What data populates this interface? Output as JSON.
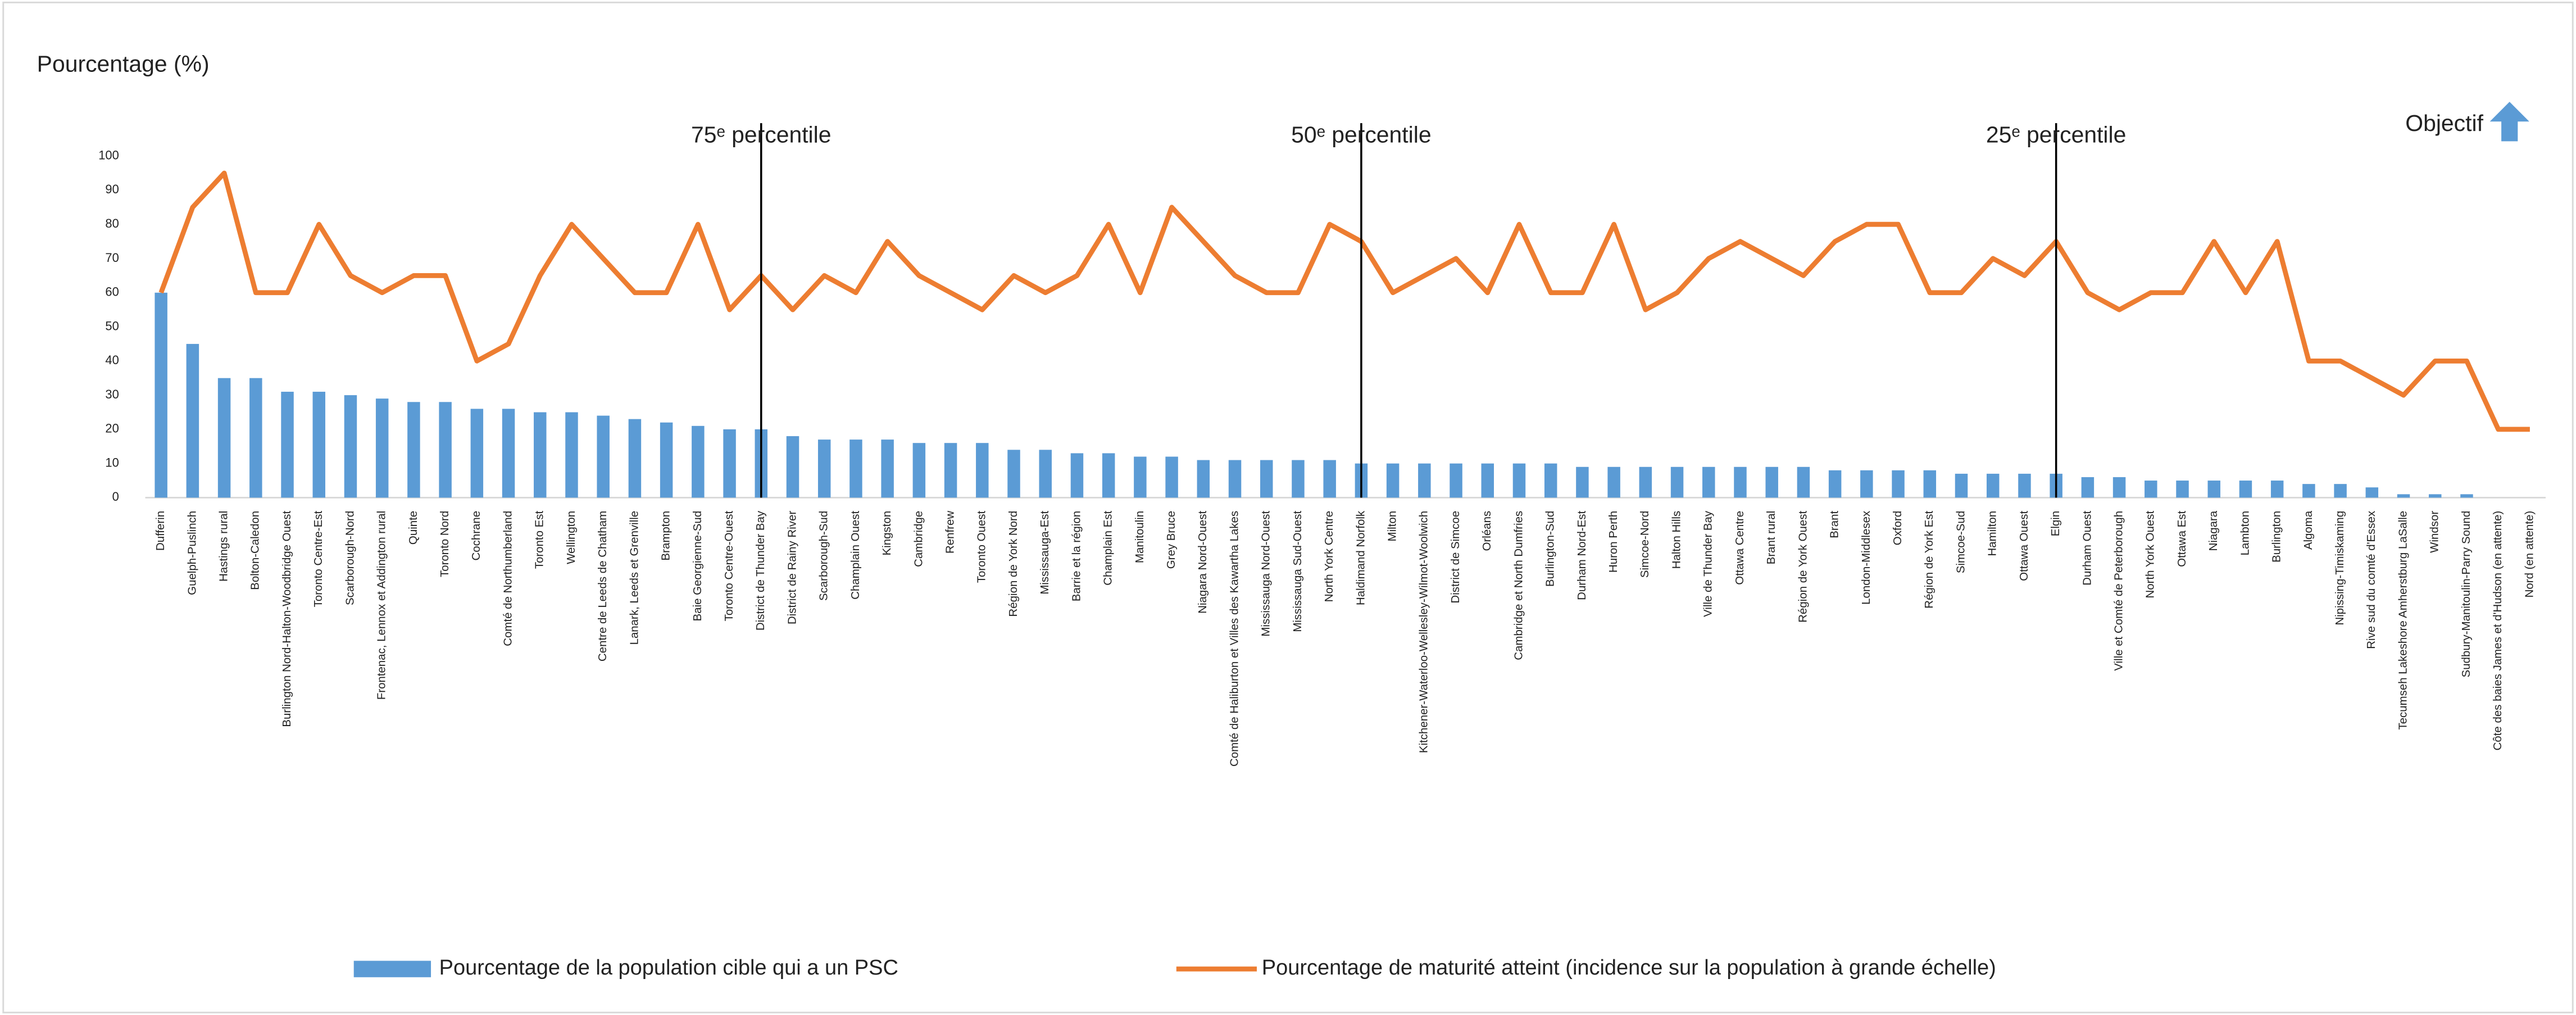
{
  "chart_data": {
    "type": "bar-line",
    "y_label": "Pourcentage (%)",
    "objective_label": "Objectif",
    "categories": [
      "Dufferin",
      "Guelph-Puslinch",
      "Hastings rural",
      "Bolton-Caledon",
      "Burlington Nord-Halton-Woodbridge Ouest",
      "Toronto Centre-Est",
      "Scarborough-Nord",
      "Frontenac, Lennox et Addington rural",
      "Quinte",
      "Toronto Nord",
      "Cochrane",
      "Comté de Northumberland",
      "Toronto Est",
      "Wellington",
      "Centre de Leeds de Chatham",
      "Lanark, Leeds et Grenville",
      "Brampton",
      "Baie Georgienne-Sud",
      "Toronto Centre-Ouest",
      "District de Thunder Bay",
      "District de Rainy River",
      "Scarborough-Sud",
      "Champlain Ouest",
      "Kingston",
      "Cambridge",
      "Renfrew",
      "Toronto Ouest",
      "Région de York Nord",
      "Mississauga-Est",
      "Barrie et la région",
      "Champlain Est",
      "Manitoulin",
      "Grey Bruce",
      "Niagara Nord-Ouest",
      "Comté de Haliburton et Villes des Kawartha Lakes",
      "Mississauga Nord-Ouest",
      "Mississauga Sud-Ouest",
      "North York Centre",
      "Haldimand Norfolk",
      "Milton",
      "Kitchener-Waterloo-Wellesley-Wilmot-Woolwich",
      "District de Simcoe",
      "Orléans",
      "Cambridge et North Dumfries",
      "Burlington-Sud",
      "Durham Nord-Est",
      "Huron Perth",
      "Simcoe-Nord",
      "Halton Hills",
      "Ville de Thunder Bay",
      "Ottawa Centre",
      "Brant rural",
      "Région de York Ouest",
      "Brant",
      "London-Middlesex",
      "Oxford",
      "Région de York Est",
      "Simcoe-Sud",
      "Hamilton",
      "Ottawa Ouest",
      "Elgin",
      "Durham Ouest",
      "Ville et Comté de Peterborough",
      "North York Ouest",
      "Ottawa Est",
      "Niagara",
      "Lambton",
      "Burlington",
      "Algoma",
      "Nipissing-Timiskaming",
      "Rive sud du comté d'Essex",
      "Tecumseh Lakeshore Amherstburg LaSalle",
      "Windsor",
      "Sudbury-Manitoulin-Parry Sound",
      "Côte des baies James et d'Hudson (en attente)",
      "Nord (en attente)"
    ],
    "series": [
      {
        "name": "Pourcentage de la population cible qui a un PSC",
        "color": "#5b9bd5",
        "kind": "bar",
        "values": [
          60,
          45,
          35,
          35,
          31,
          31,
          30,
          29,
          28,
          28,
          26,
          26,
          25,
          25,
          24,
          23,
          22,
          21,
          20,
          20,
          18,
          17,
          17,
          17,
          16,
          16,
          16,
          14,
          14,
          13,
          13,
          12,
          12,
          11,
          11,
          11,
          11,
          11,
          10,
          10,
          10,
          10,
          10,
          10,
          10,
          9,
          9,
          9,
          9,
          9,
          9,
          9,
          9,
          8,
          8,
          8,
          8,
          7,
          7,
          7,
          7,
          6,
          6,
          5,
          5,
          5,
          5,
          5,
          4,
          4,
          3,
          1,
          1,
          1,
          0,
          0
        ]
      },
      {
        "name": "Pourcentage de maturité atteint (incidence sur la population à grande échelle)",
        "color": "#ed7d31",
        "kind": "line",
        "values": [
          60,
          85,
          95,
          60,
          60,
          80,
          65,
          60,
          65,
          65,
          40,
          45,
          65,
          80,
          70,
          60,
          60,
          80,
          55,
          65,
          55,
          65,
          60,
          75,
          65,
          60,
          55,
          65,
          60,
          65,
          80,
          60,
          85,
          75,
          65,
          60,
          60,
          80,
          75,
          60,
          65,
          70,
          60,
          80,
          60,
          60,
          80,
          55,
          60,
          70,
          75,
          70,
          65,
          75,
          80,
          80,
          60,
          60,
          70,
          65,
          75,
          60,
          55,
          60,
          60,
          75,
          60,
          75,
          40,
          40,
          35,
          30,
          40,
          40,
          20,
          20
        ]
      }
    ],
    "annotations": [
      {
        "text": "75ᵉ percentile",
        "category": "District de Thunder Bay"
      },
      {
        "text": "50ᵉ percentile",
        "category": "Haldimand Norfolk"
      },
      {
        "text": "25ᵉ percentile",
        "category": "Elgin"
      }
    ],
    "ylim": [
      0,
      100
    ],
    "yticks": [
      0,
      10,
      20,
      30,
      40,
      50,
      60,
      70,
      80,
      90,
      100
    ],
    "grid": false,
    "legend": "bottom"
  }
}
